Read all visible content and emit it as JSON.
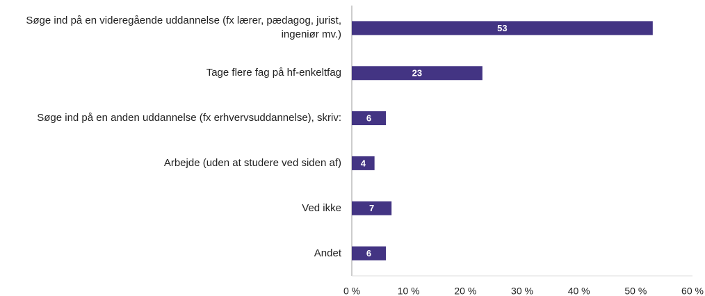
{
  "chart_data": {
    "type": "barh",
    "categories": [
      "Søge ind på en videregående uddannelse (fx lærer, pædagog, jurist, ingeniør mv.)",
      "Tage flere fag på hf-enkeltfag",
      "Søge ind på en anden uddannelse (fx erhvervsuddannelse), skriv:",
      "Arbejde (uden at studere ved siden af)",
      "Ved ikke",
      "Andet"
    ],
    "values": [
      53,
      23,
      6,
      4,
      7,
      6
    ],
    "color": "#433483",
    "xlim": [
      0,
      60
    ],
    "xticks": [
      {
        "value": 0,
        "label": "0 %"
      },
      {
        "value": 10,
        "label": "10 %"
      },
      {
        "value": 20,
        "label": "20 %"
      },
      {
        "value": 30,
        "label": "30 %"
      },
      {
        "value": 40,
        "label": "40 %"
      },
      {
        "value": 50,
        "label": "50 %"
      },
      {
        "value": 60,
        "label": "60 %"
      }
    ],
    "grid": false
  }
}
